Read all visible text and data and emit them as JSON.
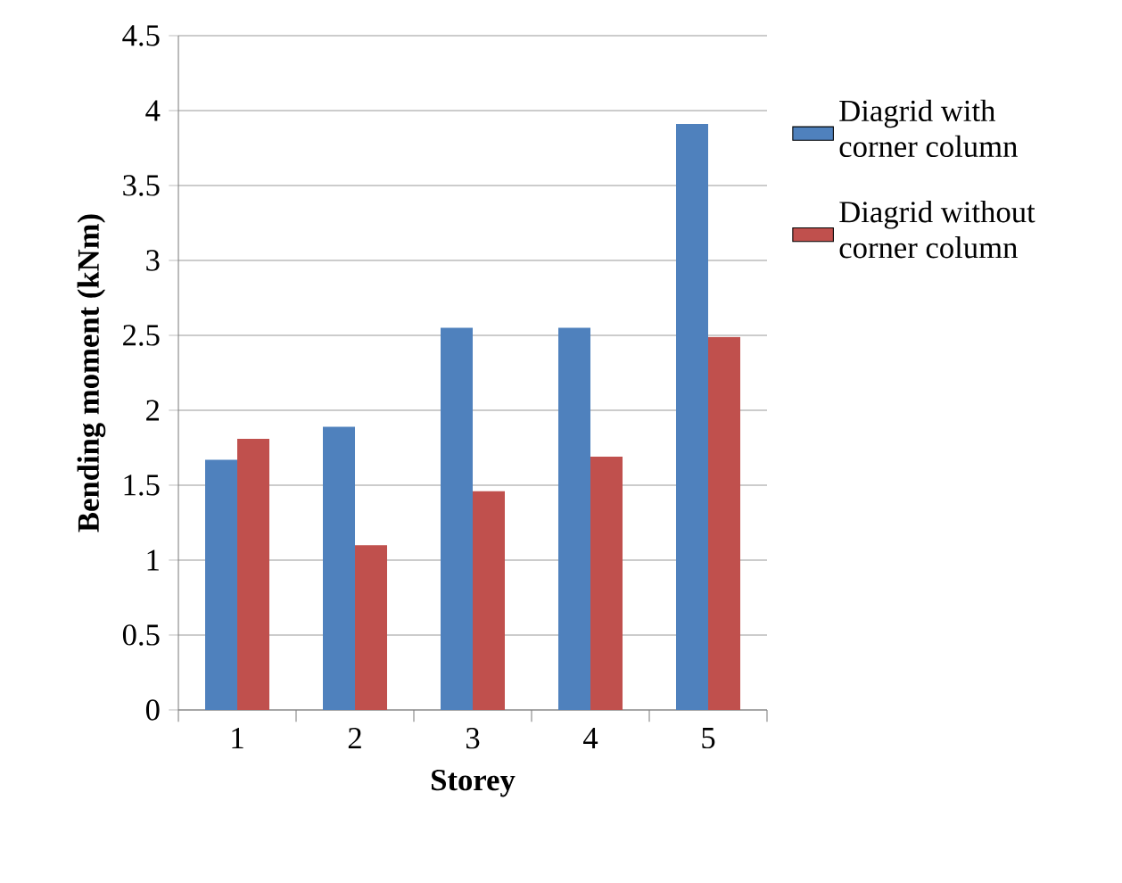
{
  "chart_data": {
    "type": "bar",
    "xlabel": "Storey",
    "ylabel": "Bending moment (kNm)",
    "categories": [
      "1",
      "2",
      "3",
      "4",
      "5"
    ],
    "series": [
      {
        "name": "Diagrid with corner column",
        "color": "#4f81bd",
        "values": [
          1.67,
          1.89,
          2.55,
          2.55,
          3.91
        ]
      },
      {
        "name": "Diagrid without corner column",
        "color": "#c0504d",
        "values": [
          1.81,
          1.1,
          1.46,
          1.69,
          2.49
        ]
      }
    ],
    "ylim": [
      0,
      4.5
    ],
    "yticks": [
      0,
      0.5,
      1,
      1.5,
      2,
      2.5,
      3,
      3.5,
      4,
      4.5
    ],
    "grid": "y",
    "legend": "right"
  }
}
